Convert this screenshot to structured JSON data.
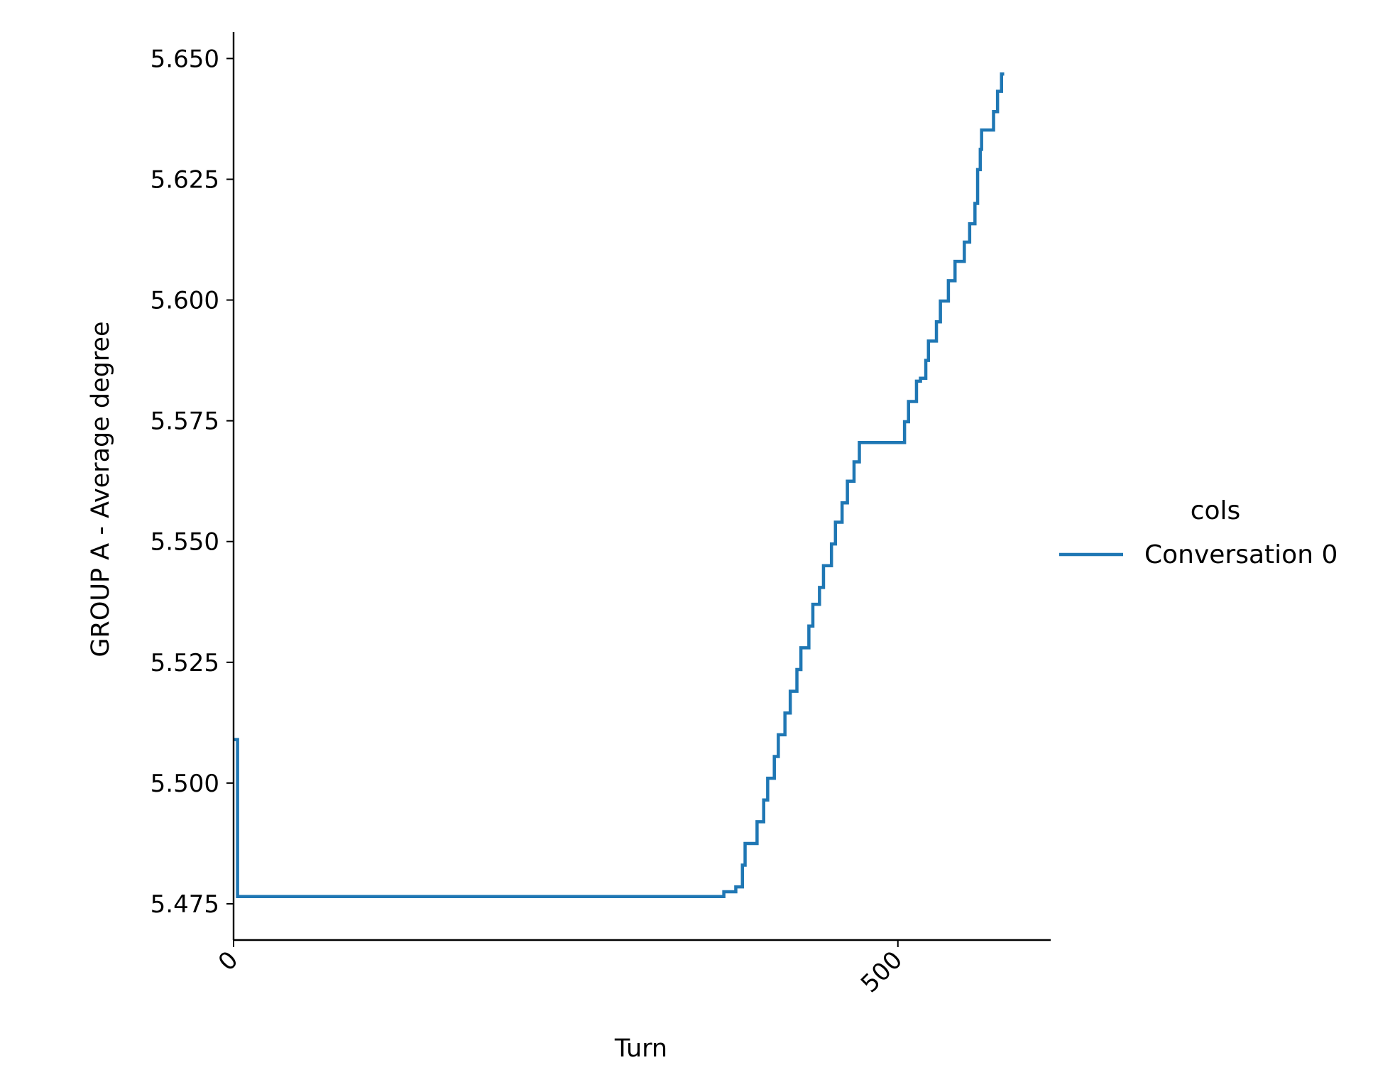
{
  "chart_data": {
    "type": "line",
    "xlabel": "Turn",
    "ylabel": "GROUP A - Average degree",
    "xlim": [
      0,
      615
    ],
    "ylim": [
      5.4675,
      5.6555
    ],
    "xticks": [
      0,
      500
    ],
    "xtick_labels": [
      "0",
      "500"
    ],
    "yticks": [
      5.475,
      5.5,
      5.525,
      5.55,
      5.575,
      5.6,
      5.625,
      5.65
    ],
    "ytick_labels": [
      "5.475",
      "5.500",
      "5.525",
      "5.550",
      "5.575",
      "5.600",
      "5.625",
      "5.650"
    ],
    "grid": false,
    "legend": {
      "title": "cols",
      "placement": "outside-right",
      "entries": [
        "Conversation 0"
      ]
    },
    "series": [
      {
        "name": "Conversation 0",
        "color": "#1f77b4",
        "step": true,
        "x": [
          0,
          3,
          366,
          369,
          374,
          378,
          382,
          383,
          385,
          392,
          394,
          399,
          400,
          402,
          407,
          408,
          410,
          415,
          417,
          419,
          424,
          425,
          427,
          433,
          434,
          436,
          441,
          442,
          444,
          450,
          451,
          453,
          458,
          460,
          462,
          467,
          468,
          471,
          505,
          507,
          508,
          514,
          516,
          517,
          521,
          523,
          527,
          529,
          532,
          535,
          538,
          543,
          547,
          550,
          554,
          556,
          558,
          560,
          562,
          563,
          565,
          572,
          575,
          577,
          578,
          580
        ],
        "y": [
          5.509,
          5.4765,
          5.4765,
          5.4775,
          5.4775,
          5.4785,
          5.4785,
          5.483,
          5.4875,
          5.4875,
          5.492,
          5.4965,
          5.4965,
          5.501,
          5.5055,
          5.5055,
          5.51,
          5.5145,
          5.5145,
          5.519,
          5.5235,
          5.5235,
          5.528,
          5.5325,
          5.5325,
          5.537,
          5.5405,
          5.5405,
          5.545,
          5.5495,
          5.5495,
          5.554,
          5.558,
          5.558,
          5.5625,
          5.5665,
          5.5665,
          5.5705,
          5.5748,
          5.5748,
          5.579,
          5.5832,
          5.5832,
          5.5838,
          5.5875,
          5.5915,
          5.5915,
          5.5955,
          5.5998,
          5.5998,
          5.604,
          5.608,
          5.608,
          5.612,
          5.6158,
          5.6158,
          5.62,
          5.627,
          5.6312,
          5.6352,
          5.6352,
          5.639,
          5.6432,
          5.6432,
          5.6468,
          5.6468
        ]
      }
    ]
  }
}
